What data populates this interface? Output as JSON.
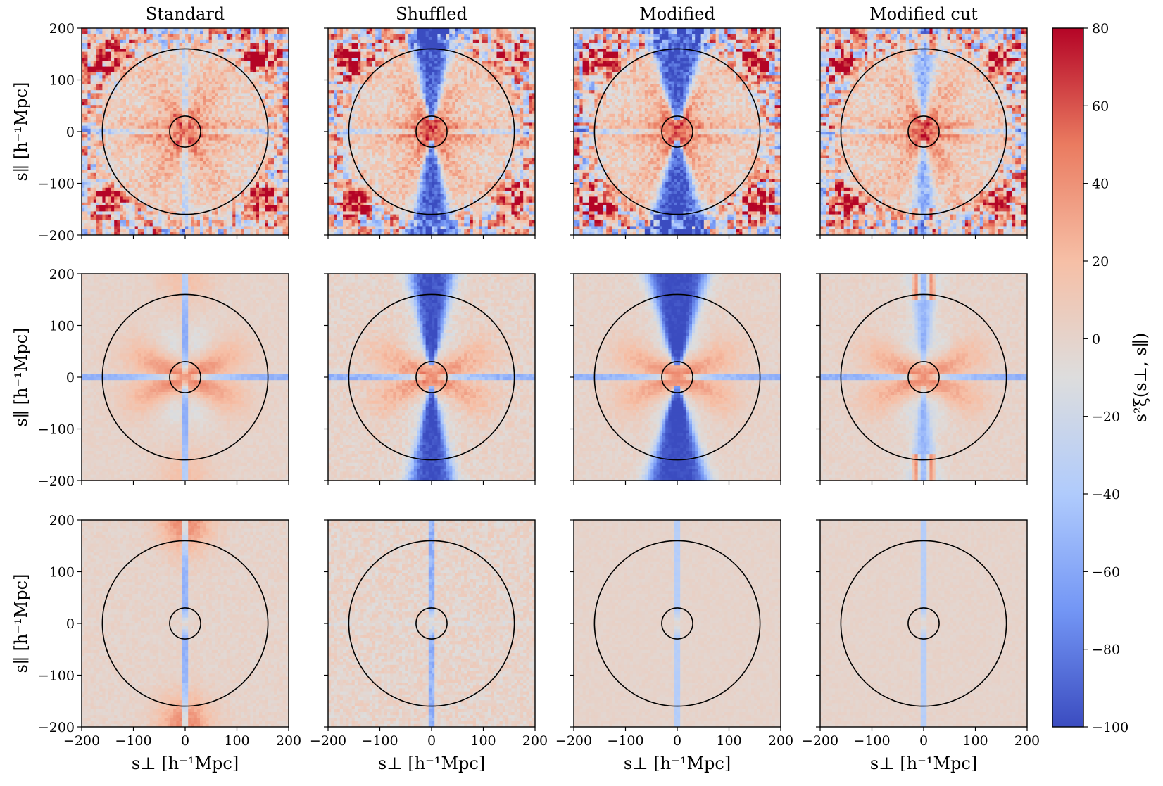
{
  "chart_data": {
    "type": "heatmap",
    "layout": {
      "rows": 3,
      "cols": 4
    },
    "column_titles": [
      "Standard",
      "Shuffled",
      "Modified",
      "Modified cut"
    ],
    "xlabel": "s⊥ [h⁻¹Mpc]",
    "ylabel": "s∥ [h⁻¹Mpc]",
    "xlim": [
      -200,
      200
    ],
    "ylim": [
      -200,
      200
    ],
    "xticks": [
      -200,
      -100,
      0,
      100,
      200
    ],
    "yticks": [
      200,
      100,
      0,
      -100,
      -200
    ],
    "xtick_labels": [
      "−200",
      "−100",
      "0",
      "100",
      "200"
    ],
    "ytick_labels": [
      "200",
      "100",
      "0",
      "−100",
      "−200"
    ],
    "circles_radius": [
      30,
      160
    ],
    "colorbar": {
      "label": "s²ξ(s⊥, s∥)",
      "min": -100,
      "max": 80,
      "ticks": [
        80,
        60,
        40,
        20,
        0,
        -20,
        -40,
        -60,
        -80,
        -100
      ],
      "tick_labels": [
        "80",
        "60",
        "40",
        "20",
        "0",
        "−20",
        "−40",
        "−60",
        "−80",
        "−100"
      ],
      "colormap": "coolwarm",
      "colors": [
        "#3b4cc0",
        "#7396f5",
        "#b0cbfc",
        "#dddddd",
        "#f6bfa6",
        "#ea7b60",
        "#b40426"
      ]
    },
    "panels": [
      {
        "row": 0,
        "col": 0,
        "column": "Standard",
        "central_peak": 40,
        "peak_width": 45,
        "arms": 30,
        "arm_pattern": "x",
        "corner_blobs": 75,
        "edge_noise": 65,
        "horizontal_line": -60,
        "vertical_line": -40,
        "vertical_wedge": 0,
        "wedge_half_angle_deg": 0,
        "cut_strip": 0,
        "far_vertical": 0,
        "noise": 18
      },
      {
        "row": 0,
        "col": 1,
        "column": "Shuffled",
        "central_peak": 45,
        "peak_width": 40,
        "arms": 30,
        "arm_pattern": "x",
        "corner_blobs": 75,
        "edge_noise": 65,
        "horizontal_line": -60,
        "vertical_line": 0,
        "vertical_wedge": -100,
        "wedge_half_angle_deg": 12,
        "cut_strip": 0,
        "far_vertical": 0,
        "noise": 18
      },
      {
        "row": 0,
        "col": 2,
        "column": "Modified",
        "central_peak": 45,
        "peak_width": 40,
        "arms": 30,
        "arm_pattern": "x",
        "corner_blobs": 75,
        "edge_noise": 75,
        "horizontal_line": -60,
        "vertical_line": 0,
        "vertical_wedge": -100,
        "wedge_half_angle_deg": 16,
        "cut_strip": 0,
        "far_vertical": 0,
        "noise": 18
      },
      {
        "row": 0,
        "col": 3,
        "column": "Modified cut",
        "central_peak": 45,
        "peak_width": 40,
        "arms": 30,
        "arm_pattern": "x",
        "corner_blobs": 75,
        "edge_noise": 70,
        "horizontal_line": -60,
        "vertical_line": 0,
        "vertical_wedge": -60,
        "wedge_half_angle_deg": 8,
        "cut_strip": 80,
        "far_vertical": 0,
        "noise": 18
      },
      {
        "row": 1,
        "col": 0,
        "column": "Standard",
        "central_peak": 45,
        "peak_width": 45,
        "arms": 22,
        "arm_pattern": "butterfly",
        "corner_blobs": 0,
        "edge_noise": 0,
        "horizontal_line": -90,
        "vertical_line": -90,
        "vertical_wedge": 0,
        "wedge_half_angle_deg": 0,
        "cut_strip": 0,
        "far_vertical": 20,
        "noise": 4
      },
      {
        "row": 1,
        "col": 1,
        "column": "Shuffled",
        "central_peak": 45,
        "peak_width": 40,
        "arms": 22,
        "arm_pattern": "butterfly",
        "corner_blobs": 0,
        "edge_noise": 0,
        "horizontal_line": -90,
        "vertical_line": 0,
        "vertical_wedge": -100,
        "wedge_half_angle_deg": 12,
        "cut_strip": 0,
        "far_vertical": 0,
        "noise": 8
      },
      {
        "row": 1,
        "col": 2,
        "column": "Modified",
        "central_peak": 45,
        "peak_width": 40,
        "arms": 22,
        "arm_pattern": "butterfly",
        "corner_blobs": 0,
        "edge_noise": 0,
        "horizontal_line": -90,
        "vertical_line": 0,
        "vertical_wedge": -100,
        "wedge_half_angle_deg": 16,
        "cut_strip": 0,
        "far_vertical": 0,
        "noise": 5
      },
      {
        "row": 1,
        "col": 3,
        "column": "Modified cut",
        "central_peak": 45,
        "peak_width": 40,
        "arms": 22,
        "arm_pattern": "butterfly",
        "corner_blobs": 0,
        "edge_noise": 0,
        "horizontal_line": -90,
        "vertical_line": 0,
        "vertical_wedge": -55,
        "wedge_half_angle_deg": 7,
        "cut_strip": 80,
        "far_vertical": 0,
        "noise": 5
      },
      {
        "row": 2,
        "col": 0,
        "column": "Standard",
        "central_peak": 0,
        "peak_width": 0,
        "arms": 0,
        "arm_pattern": "none",
        "corner_blobs": 0,
        "edge_noise": 0,
        "horizontal_line": 0,
        "vertical_line": -90,
        "vertical_wedge": 0,
        "wedge_half_angle_deg": 0,
        "cut_strip": 0,
        "far_vertical": 45,
        "noise": 5
      },
      {
        "row": 2,
        "col": 1,
        "column": "Shuffled",
        "central_peak": 0,
        "peak_width": 0,
        "arms": 0,
        "arm_pattern": "none",
        "corner_blobs": 0,
        "edge_noise": 0,
        "horizontal_line": -10,
        "vertical_line": -90,
        "vertical_wedge": 0,
        "wedge_half_angle_deg": 0,
        "cut_strip": 0,
        "far_vertical": 0,
        "noise": 10
      },
      {
        "row": 2,
        "col": 2,
        "column": "Modified",
        "central_peak": 0,
        "peak_width": 0,
        "arms": 0,
        "arm_pattern": "none",
        "corner_blobs": 0,
        "edge_noise": 0,
        "horizontal_line": 0,
        "vertical_line": -60,
        "vertical_wedge": 0,
        "wedge_half_angle_deg": 0,
        "cut_strip": 0,
        "far_vertical": 0,
        "noise": 3
      },
      {
        "row": 2,
        "col": 3,
        "column": "Modified cut",
        "central_peak": 0,
        "peak_width": 0,
        "arms": 0,
        "arm_pattern": "none",
        "corner_blobs": 0,
        "edge_noise": 0,
        "horizontal_line": 0,
        "vertical_line": -60,
        "vertical_wedge": 0,
        "wedge_half_angle_deg": 0,
        "cut_strip": 0,
        "far_vertical": 0,
        "noise": 3
      }
    ]
  }
}
